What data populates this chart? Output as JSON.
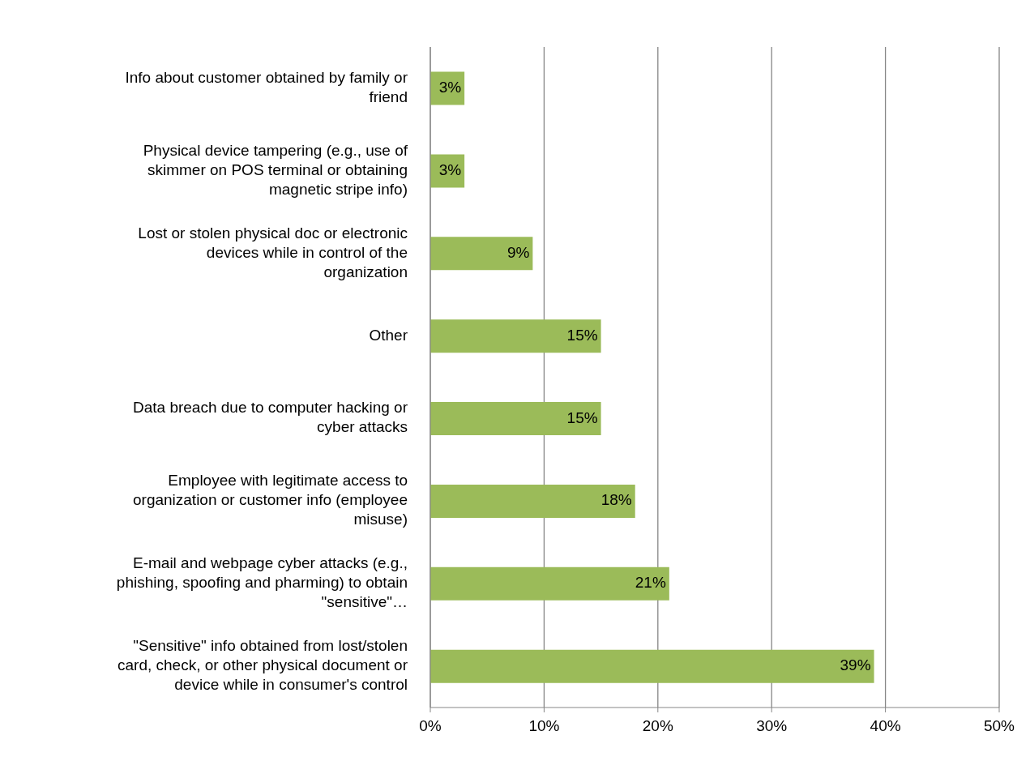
{
  "chart_data": {
    "type": "bar",
    "orientation": "horizontal",
    "categories": [
      "Info about customer obtained by family or friend",
      "Physical device tampering (e.g., use of skimmer on POS terminal or obtaining magnetic stripe info)",
      "Lost or stolen physical doc or electronic devices while in control of the organization",
      "Other",
      "Data breach due to computer hacking or cyber attacks",
      "Employee with legitimate access to organization or customer info (employee misuse)",
      "E-mail and webpage cyber attacks (e.g., phishing, spoofing and pharming) to obtain \"sensitive\"…",
      "\"Sensitive\" info obtained from lost/stolen card, check, or other physical document or device while in consumer's control"
    ],
    "values": [
      3,
      3,
      9,
      15,
      15,
      18,
      21,
      39
    ],
    "value_labels": [
      "3%",
      "3%",
      "9%",
      "15%",
      "15%",
      "18%",
      "21%",
      "39%"
    ],
    "color": "#9bbb59",
    "xlim": [
      0,
      50
    ],
    "xticks": [
      {
        "value": 0,
        "label": "0%"
      },
      {
        "value": 10,
        "label": "10%"
      },
      {
        "value": 20,
        "label": "20%"
      },
      {
        "value": 30,
        "label": "30%"
      },
      {
        "value": 40,
        "label": "40%"
      },
      {
        "value": 50,
        "label": "50%"
      }
    ],
    "grid": "x",
    "legend": false
  }
}
